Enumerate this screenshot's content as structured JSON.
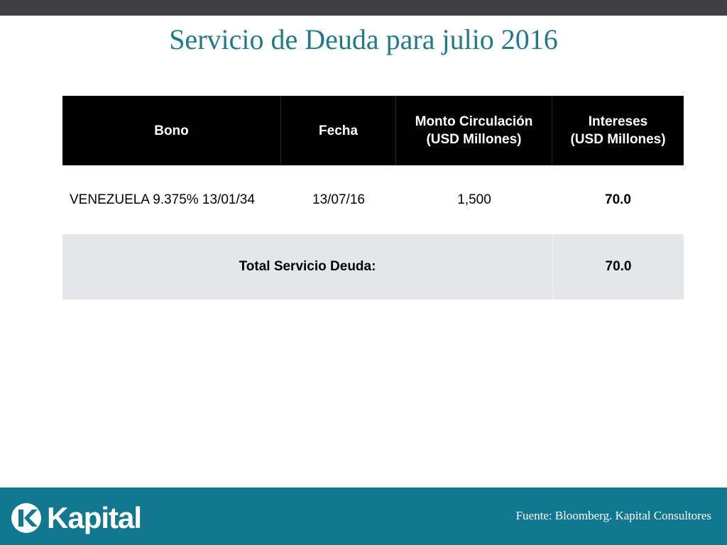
{
  "slide": {
    "title": "Servicio de Deuda para julio 2016"
  },
  "table": {
    "headers": {
      "bono": "Bono",
      "fecha": "Fecha",
      "monto_line1": "Monto Circulación",
      "monto_line2": "(USD Millones)",
      "intereses_line1": "Intereses",
      "intereses_line2": "(USD Millones)"
    },
    "rows": [
      {
        "bono": "VENEZUELA 9.375% 13/01/34",
        "fecha": "13/07/16",
        "monto": "1,500",
        "intereses": "70.0"
      }
    ],
    "total": {
      "label": "Total Servicio Deuda:",
      "value": "70.0"
    }
  },
  "footer": {
    "brand": "Kapital",
    "source": "Fuente: Bloomberg. Kapital Consultores"
  },
  "colors": {
    "title": "#1f7a8c",
    "footer_bg": "#127891",
    "header_bg": "#000000",
    "total_bg": "#e5e6ea",
    "top_bar": "#3f3f41"
  },
  "icons": {
    "logo": "kapital-k-logo-icon"
  }
}
